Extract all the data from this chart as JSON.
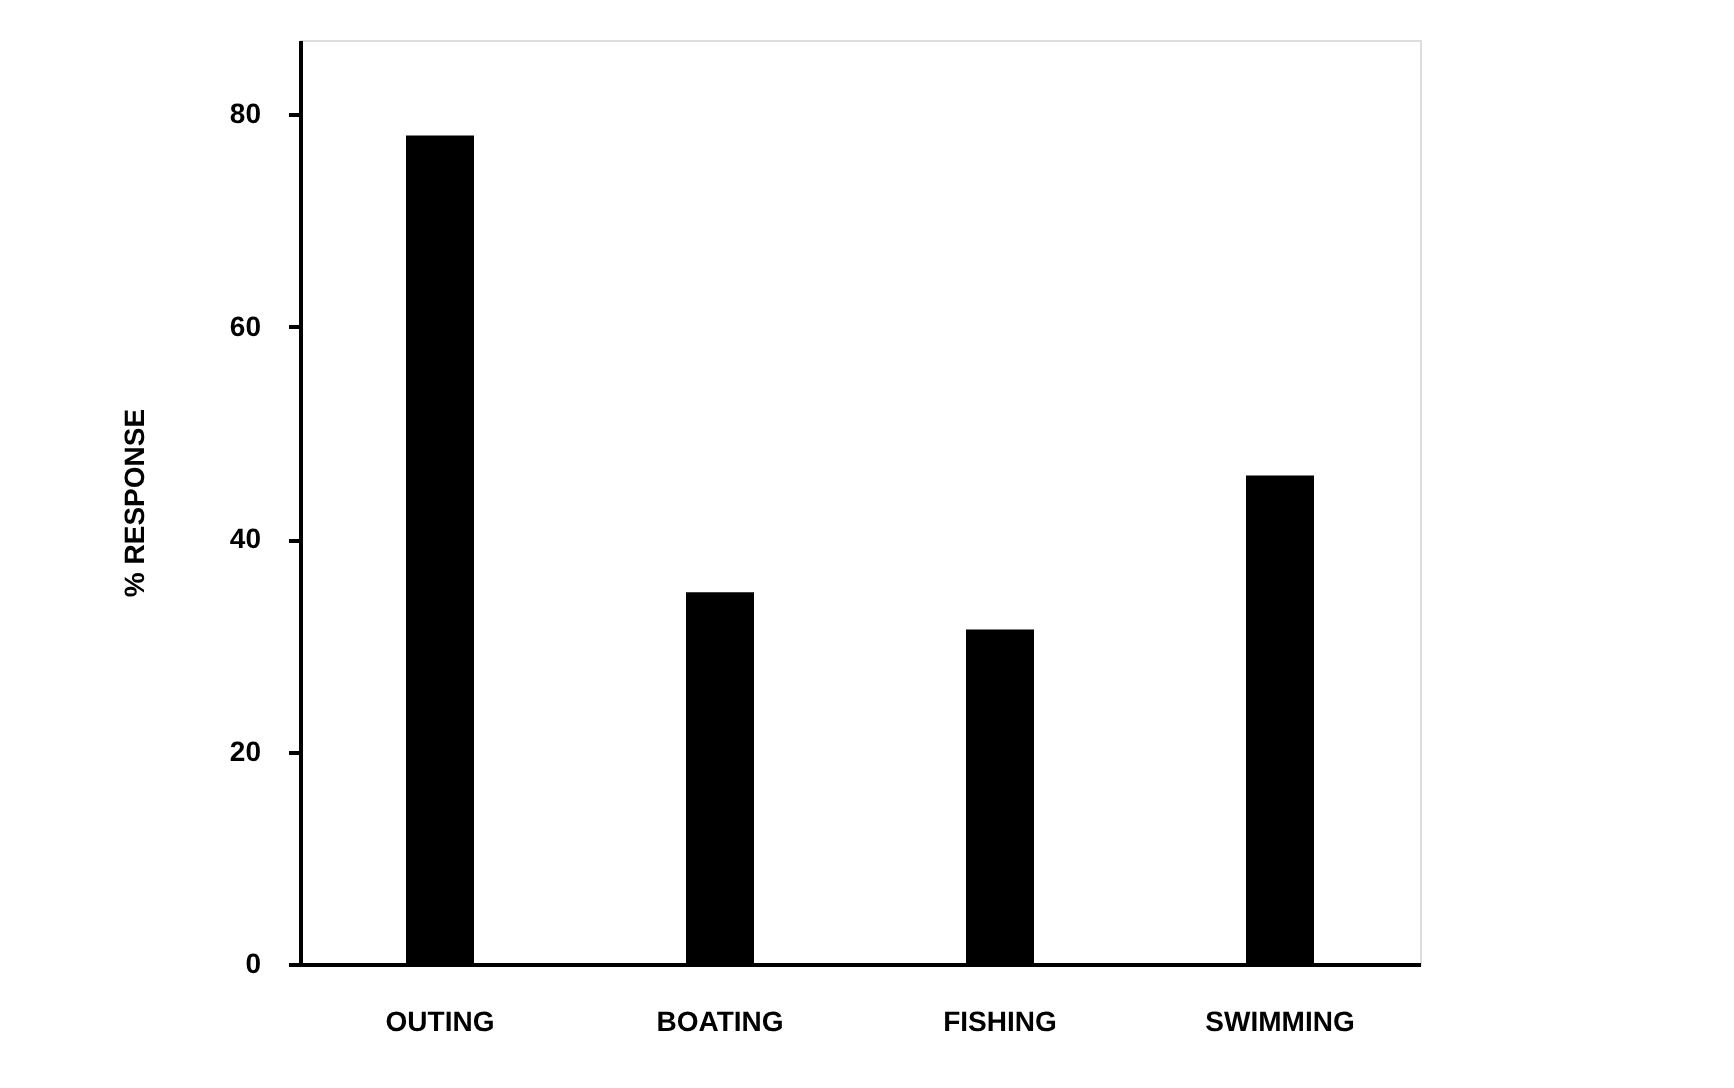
{
  "chart_data": {
    "type": "bar",
    "ylabel": "% RESPONSE",
    "categories": [
      "OUTING",
      "BOATING",
      "FISHING",
      "SWIMMING"
    ],
    "values": [
      78,
      35,
      31.5,
      46
    ],
    "color": "#000000",
    "ylim": [
      0,
      87
    ],
    "yticks": [
      0,
      20,
      40,
      60,
      80
    ],
    "grid": false
  }
}
